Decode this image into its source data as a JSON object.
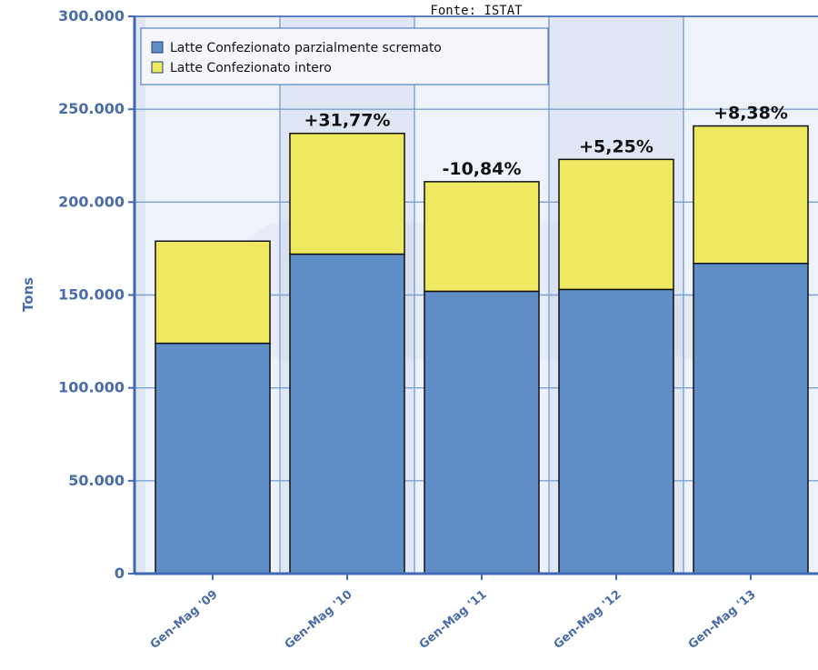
{
  "chart_data": {
    "type": "bar",
    "stacked": true,
    "subtitle": "Fonte: ISTAT",
    "ylabel": "Tons",
    "xlabel": "",
    "ylim": [
      0,
      300000
    ],
    "yticks": [
      "0",
      "50.000",
      "100.000",
      "150.000",
      "200.000",
      "250.000",
      "300.000"
    ],
    "categories": [
      "Gen-Mag '09",
      "Gen-Mag '10",
      "Gen-Mag '11",
      "Gen-Mag '12",
      "Gen-Mag '13"
    ],
    "series": [
      {
        "name": "Latte Confezionato parzialmente scremato",
        "color": "#5f8ec6",
        "values": [
          124000,
          172000,
          152000,
          153000,
          167000
        ]
      },
      {
        "name": "Latte Confezionato intero",
        "color": "#efe962",
        "values": [
          55000,
          65000,
          59000,
          70000,
          74000
        ]
      }
    ],
    "annotations": [
      "",
      "+31,77%",
      "-10,84%",
      "+5,25%",
      "+8,38%"
    ],
    "grid": true,
    "legend_position": "top-left",
    "colors": {
      "axis": "#3f69b6",
      "plot_bg": "#dfe7f4",
      "band_light": "#eef3fb",
      "tick_text": "#4a6ca8"
    }
  }
}
